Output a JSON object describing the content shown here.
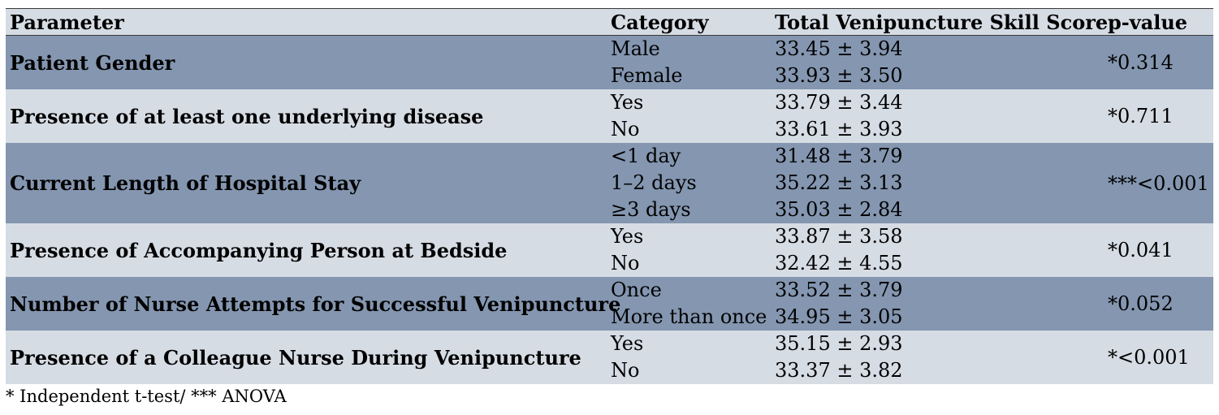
{
  "headers": {
    "parameter": "Parameter",
    "category": "Category",
    "score": "Total Venipuncture Skill Score",
    "pvalue": "p-value"
  },
  "rows": [
    {
      "parameter": "Patient Gender",
      "categories": [
        "Male",
        "Female"
      ],
      "scores": [
        "33.45 ± 3.94",
        "33.93 ± 3.50"
      ],
      "pvalue": "*0.314"
    },
    {
      "parameter": "Presence of at least one underlying disease",
      "categories": [
        "Yes",
        "No"
      ],
      "scores": [
        "33.79 ± 3.44",
        "33.61 ± 3.93"
      ],
      "pvalue": "*0.711"
    },
    {
      "parameter": "Current Length of Hospital Stay",
      "categories": [
        "<1 day",
        "1–2 days",
        "≥3 days"
      ],
      "scores": [
        "31.48 ± 3.79",
        "35.22 ± 3.13",
        "35.03 ± 2.84"
      ],
      "pvalue": "***<0.001"
    },
    {
      "parameter": "Presence of Accompanying Person at Bedside",
      "categories": [
        "Yes",
        "No"
      ],
      "scores": [
        "33.87 ± 3.58",
        "32.42 ± 4.55"
      ],
      "pvalue": "*0.041"
    },
    {
      "parameter": "Number of Nurse Attempts for Successful Venipuncture",
      "categories": [
        "Once",
        "More than once"
      ],
      "scores": [
        "33.52 ± 3.79",
        "34.95 ± 3.05"
      ],
      "pvalue": "*0.052"
    },
    {
      "parameter": "Presence of a Colleague Nurse During Venipuncture",
      "categories": [
        "Yes",
        "No"
      ],
      "scores": [
        "35.15 ± 2.93",
        "33.37 ± 3.82"
      ],
      "pvalue": "*<0.001"
    }
  ],
  "footnote": "* Independent t-test/ *** ANOVA",
  "colors": {
    "header_background": "#d6dce4",
    "dark_row": "#8496b0",
    "light_row": "#d6dce4"
  }
}
